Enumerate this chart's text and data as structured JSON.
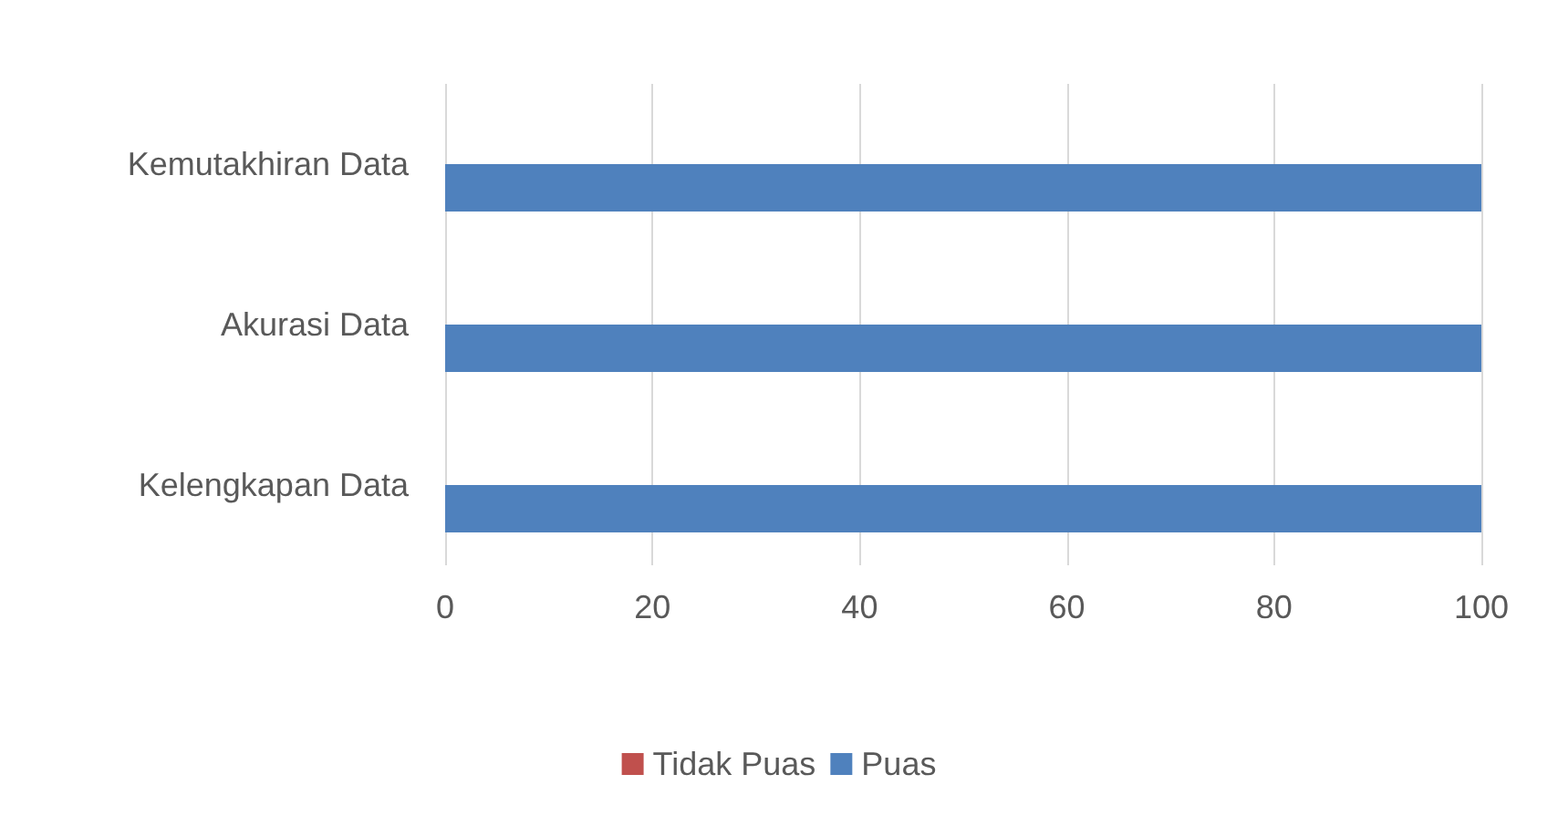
{
  "chart_data": {
    "type": "bar",
    "orientation": "horizontal",
    "categories": [
      "Kemutakhiran Data",
      "Akurasi Data",
      "Kelengkapan Data"
    ],
    "series": [
      {
        "name": "Tidak Puas",
        "color": "#c0504d",
        "values": [
          0,
          0,
          0
        ]
      },
      {
        "name": "Puas",
        "color": "#4f81bd",
        "values": [
          100,
          100,
          100
        ]
      }
    ],
    "xlim": [
      0,
      100
    ],
    "xticks": [
      0,
      20,
      40,
      60,
      80,
      100
    ],
    "grid": "x",
    "legend": "bottom"
  }
}
